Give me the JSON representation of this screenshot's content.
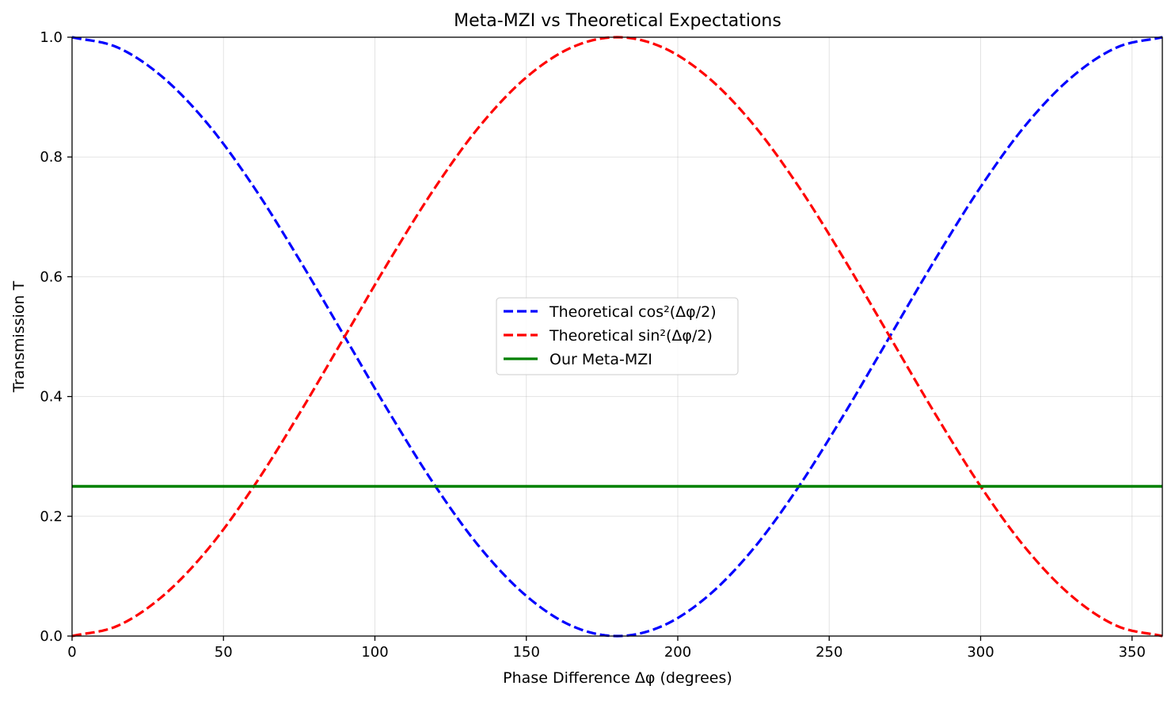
{
  "chart_data": {
    "type": "line",
    "title": "Meta-MZI vs Theoretical Expectations",
    "xlabel": "Phase Difference Δφ (degrees)",
    "ylabel": "Transmission T",
    "xlim": [
      0,
      360
    ],
    "ylim": [
      0,
      1.0
    ],
    "xticks": [
      0,
      50,
      100,
      150,
      200,
      250,
      300,
      350
    ],
    "yticks": [
      0.0,
      0.2,
      0.4,
      0.6,
      0.8,
      1.0
    ],
    "grid": true,
    "legend_position": "center",
    "series": [
      {
        "name": "Theoretical cos²(Δφ/2)",
        "style": "dashed",
        "color": "#0000ff",
        "x": [
          0,
          15,
          30,
          45,
          60,
          75,
          90,
          105,
          120,
          135,
          150,
          165,
          180,
          195,
          210,
          225,
          240,
          255,
          270,
          285,
          300,
          315,
          330,
          345,
          360
        ],
        "y": [
          1.0,
          0.983,
          0.933,
          0.854,
          0.75,
          0.629,
          0.5,
          0.371,
          0.25,
          0.146,
          0.067,
          0.017,
          0.0,
          0.017,
          0.067,
          0.146,
          0.25,
          0.371,
          0.5,
          0.629,
          0.75,
          0.854,
          0.933,
          0.983,
          1.0
        ]
      },
      {
        "name": "Theoretical sin²(Δφ/2)",
        "style": "dashed",
        "color": "#ff0000",
        "x": [
          0,
          15,
          30,
          45,
          60,
          75,
          90,
          105,
          120,
          135,
          150,
          165,
          180,
          195,
          210,
          225,
          240,
          255,
          270,
          285,
          300,
          315,
          330,
          345,
          360
        ],
        "y": [
          0.0,
          0.017,
          0.067,
          0.146,
          0.25,
          0.371,
          0.5,
          0.629,
          0.75,
          0.854,
          0.933,
          0.983,
          1.0,
          0.983,
          0.933,
          0.854,
          0.75,
          0.629,
          0.5,
          0.371,
          0.25,
          0.146,
          0.067,
          0.017,
          0.0
        ]
      },
      {
        "name": "Our Meta-MZI",
        "style": "solid",
        "color": "#008000",
        "x": [
          0,
          360
        ],
        "y": [
          0.25,
          0.25
        ]
      }
    ]
  }
}
